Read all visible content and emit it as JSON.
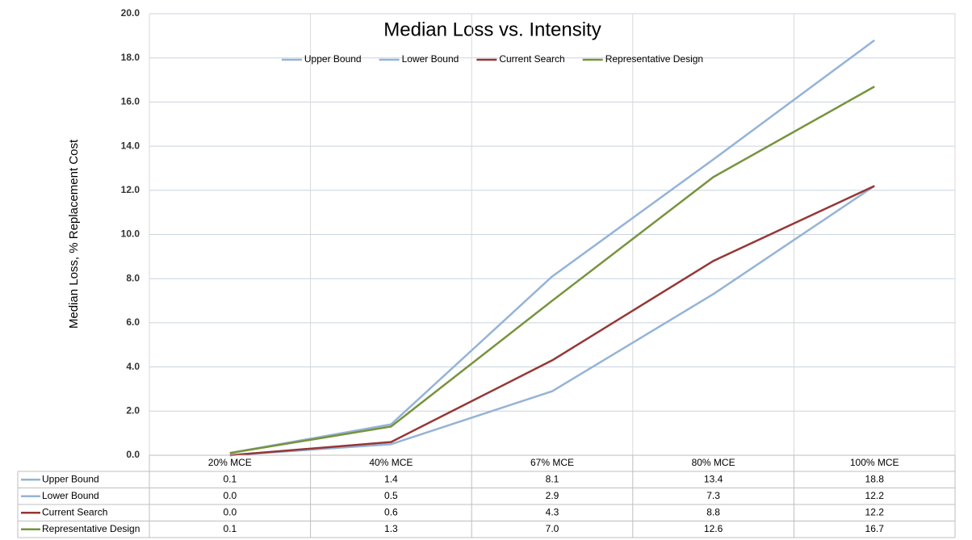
{
  "chart_data": {
    "type": "line",
    "title": "Median Loss vs. Intensity",
    "y_label": "Median Loss, % Replacement Cost",
    "categories": [
      "20% MCE",
      "40% MCE",
      "67% MCE",
      "80% MCE",
      "100% MCE"
    ],
    "series": [
      {
        "name": "Upper Bound",
        "color": "#95b3d7",
        "values": [
          0.1,
          1.4,
          8.1,
          13.4,
          18.8
        ],
        "value_labels": [
          "0.1",
          "1.4",
          "8.1",
          "13.4",
          "18.8"
        ]
      },
      {
        "name": "Lower Bound",
        "color": "#95b3d7",
        "values": [
          0.0,
          0.5,
          2.9,
          7.3,
          12.2
        ],
        "value_labels": [
          "0.0",
          "0.5",
          "2.9",
          "7.3",
          "12.2"
        ]
      },
      {
        "name": "Current Search",
        "color": "#953735",
        "values": [
          0.0,
          0.6,
          4.3,
          8.8,
          12.2
        ],
        "value_labels": [
          "0.0",
          "0.6",
          "4.3",
          "8.8",
          "12.2"
        ]
      },
      {
        "name": "Representative Design",
        "color": "#77933c",
        "values": [
          0.1,
          1.3,
          7.0,
          12.6,
          16.7
        ],
        "value_labels": [
          "0.1",
          "1.3",
          "7.0",
          "12.6",
          "16.7"
        ]
      }
    ],
    "ylim": [
      0,
      20
    ],
    "yticks": [
      {
        "value": 0,
        "label": "0.0"
      },
      {
        "value": 2,
        "label": "2.0"
      },
      {
        "value": 4,
        "label": "4.0"
      },
      {
        "value": 6,
        "label": "6.0"
      },
      {
        "value": 8,
        "label": "8.0"
      },
      {
        "value": 10,
        "label": "10.0"
      },
      {
        "value": 12,
        "label": "12.0"
      },
      {
        "value": 14,
        "label": "14.0"
      },
      {
        "value": 16,
        "label": "16.0"
      },
      {
        "value": 18,
        "label": "18.0"
      },
      {
        "value": 20,
        "label": "20.0"
      }
    ],
    "grid": true,
    "legend": "top",
    "data_table": true
  }
}
